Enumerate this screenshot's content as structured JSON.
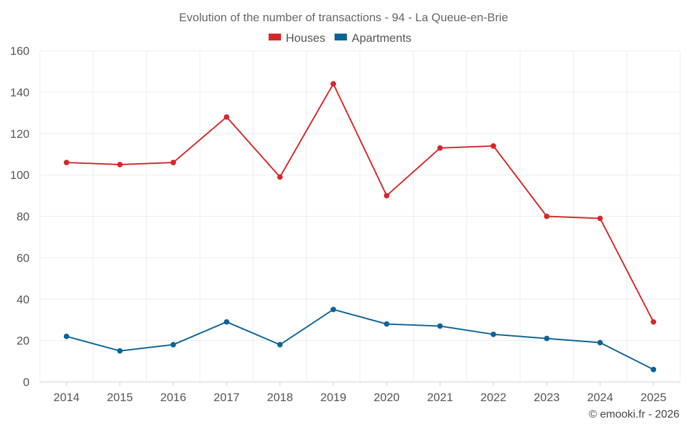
{
  "chart_data": {
    "type": "line",
    "title": "Evolution of the number of transactions - 94 - La Queue-en-Brie",
    "categories": [
      "2014",
      "2015",
      "2016",
      "2017",
      "2018",
      "2019",
      "2020",
      "2021",
      "2022",
      "2023",
      "2024",
      "2025"
    ],
    "series": [
      {
        "name": "Houses",
        "color": "#d62728",
        "values": [
          106,
          105,
          106,
          128,
          99,
          144,
          90,
          113,
          114,
          80,
          79,
          29
        ]
      },
      {
        "name": "Apartments",
        "color": "#0b6399",
        "values": [
          22,
          15,
          18,
          29,
          18,
          35,
          28,
          27,
          23,
          21,
          19,
          6
        ]
      }
    ],
    "ylim": [
      0,
      160
    ],
    "yticks": [
      0,
      20,
      40,
      60,
      80,
      100,
      120,
      140,
      160
    ],
    "xlabel": "",
    "ylabel": "",
    "grid": true,
    "legend": "top-center"
  },
  "credit": "© emooki.fr - 2026"
}
